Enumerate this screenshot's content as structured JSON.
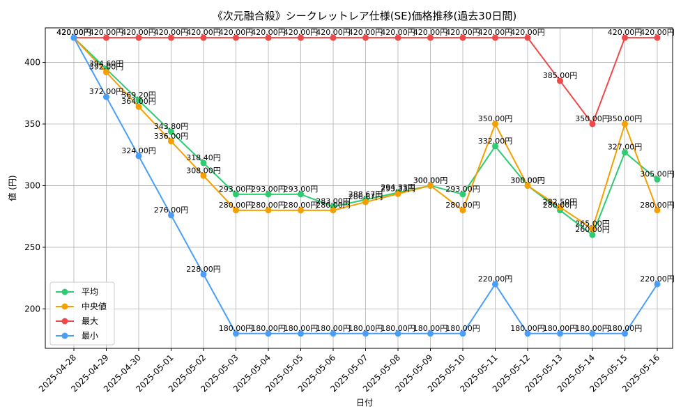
{
  "chart_data": {
    "type": "line",
    "title": "《次元融合殺》シークレットレア仕様(SE)価格推移(過去30日間)",
    "xlabel": "日付",
    "ylabel": "値 (円)",
    "ylim": [
      168,
      428
    ],
    "yticks": [
      200,
      250,
      300,
      350,
      400
    ],
    "grid": true,
    "legend_position": "lower-left",
    "label_suffix": "円",
    "categories": [
      "2025-04-28",
      "2025-04-29",
      "2025-04-30",
      "2025-05-01",
      "2025-05-02",
      "2025-05-03",
      "2025-05-04",
      "2025-05-05",
      "2025-05-06",
      "2025-05-07",
      "2025-05-08",
      "2025-05-09",
      "2025-05-10",
      "2025-05-11",
      "2025-05-12",
      "2025-05-13",
      "2025-05-14",
      "2025-05-15",
      "2025-05-16"
    ],
    "series": [
      {
        "name": "平均",
        "color": "#2ecc71",
        "values": [
          420.0,
          394.6,
          369.2,
          343.8,
          318.4,
          293.0,
          293.0,
          293.0,
          283.0,
          288.67,
          294.33,
          300.0,
          293.0,
          332.0,
          300.0,
          280.0,
          260.0,
          327.0,
          305.0
        ]
      },
      {
        "name": "中央値",
        "color": "#f5a000",
        "values": [
          420.0,
          392.0,
          364.0,
          336.0,
          308.0,
          280.0,
          280.0,
          280.0,
          280.0,
          286.67,
          293.33,
          300.0,
          280.0,
          350.0,
          300.0,
          282.5,
          265.0,
          350.0,
          280.0
        ]
      },
      {
        "name": "最大",
        "color": "#f04848",
        "values": [
          420.0,
          420.0,
          420.0,
          420.0,
          420.0,
          420.0,
          420.0,
          420.0,
          420.0,
          420.0,
          420.0,
          420.0,
          420.0,
          420.0,
          420.0,
          385.0,
          350.0,
          420.0,
          420.0
        ]
      },
      {
        "name": "最小",
        "color": "#4a9df8",
        "values": [
          420.0,
          372.0,
          324.0,
          276.0,
          228.0,
          180.0,
          180.0,
          180.0,
          180.0,
          180.0,
          180.0,
          180.0,
          180.0,
          220.0,
          180.0,
          180.0,
          180.0,
          180.0,
          220.0
        ]
      }
    ]
  }
}
